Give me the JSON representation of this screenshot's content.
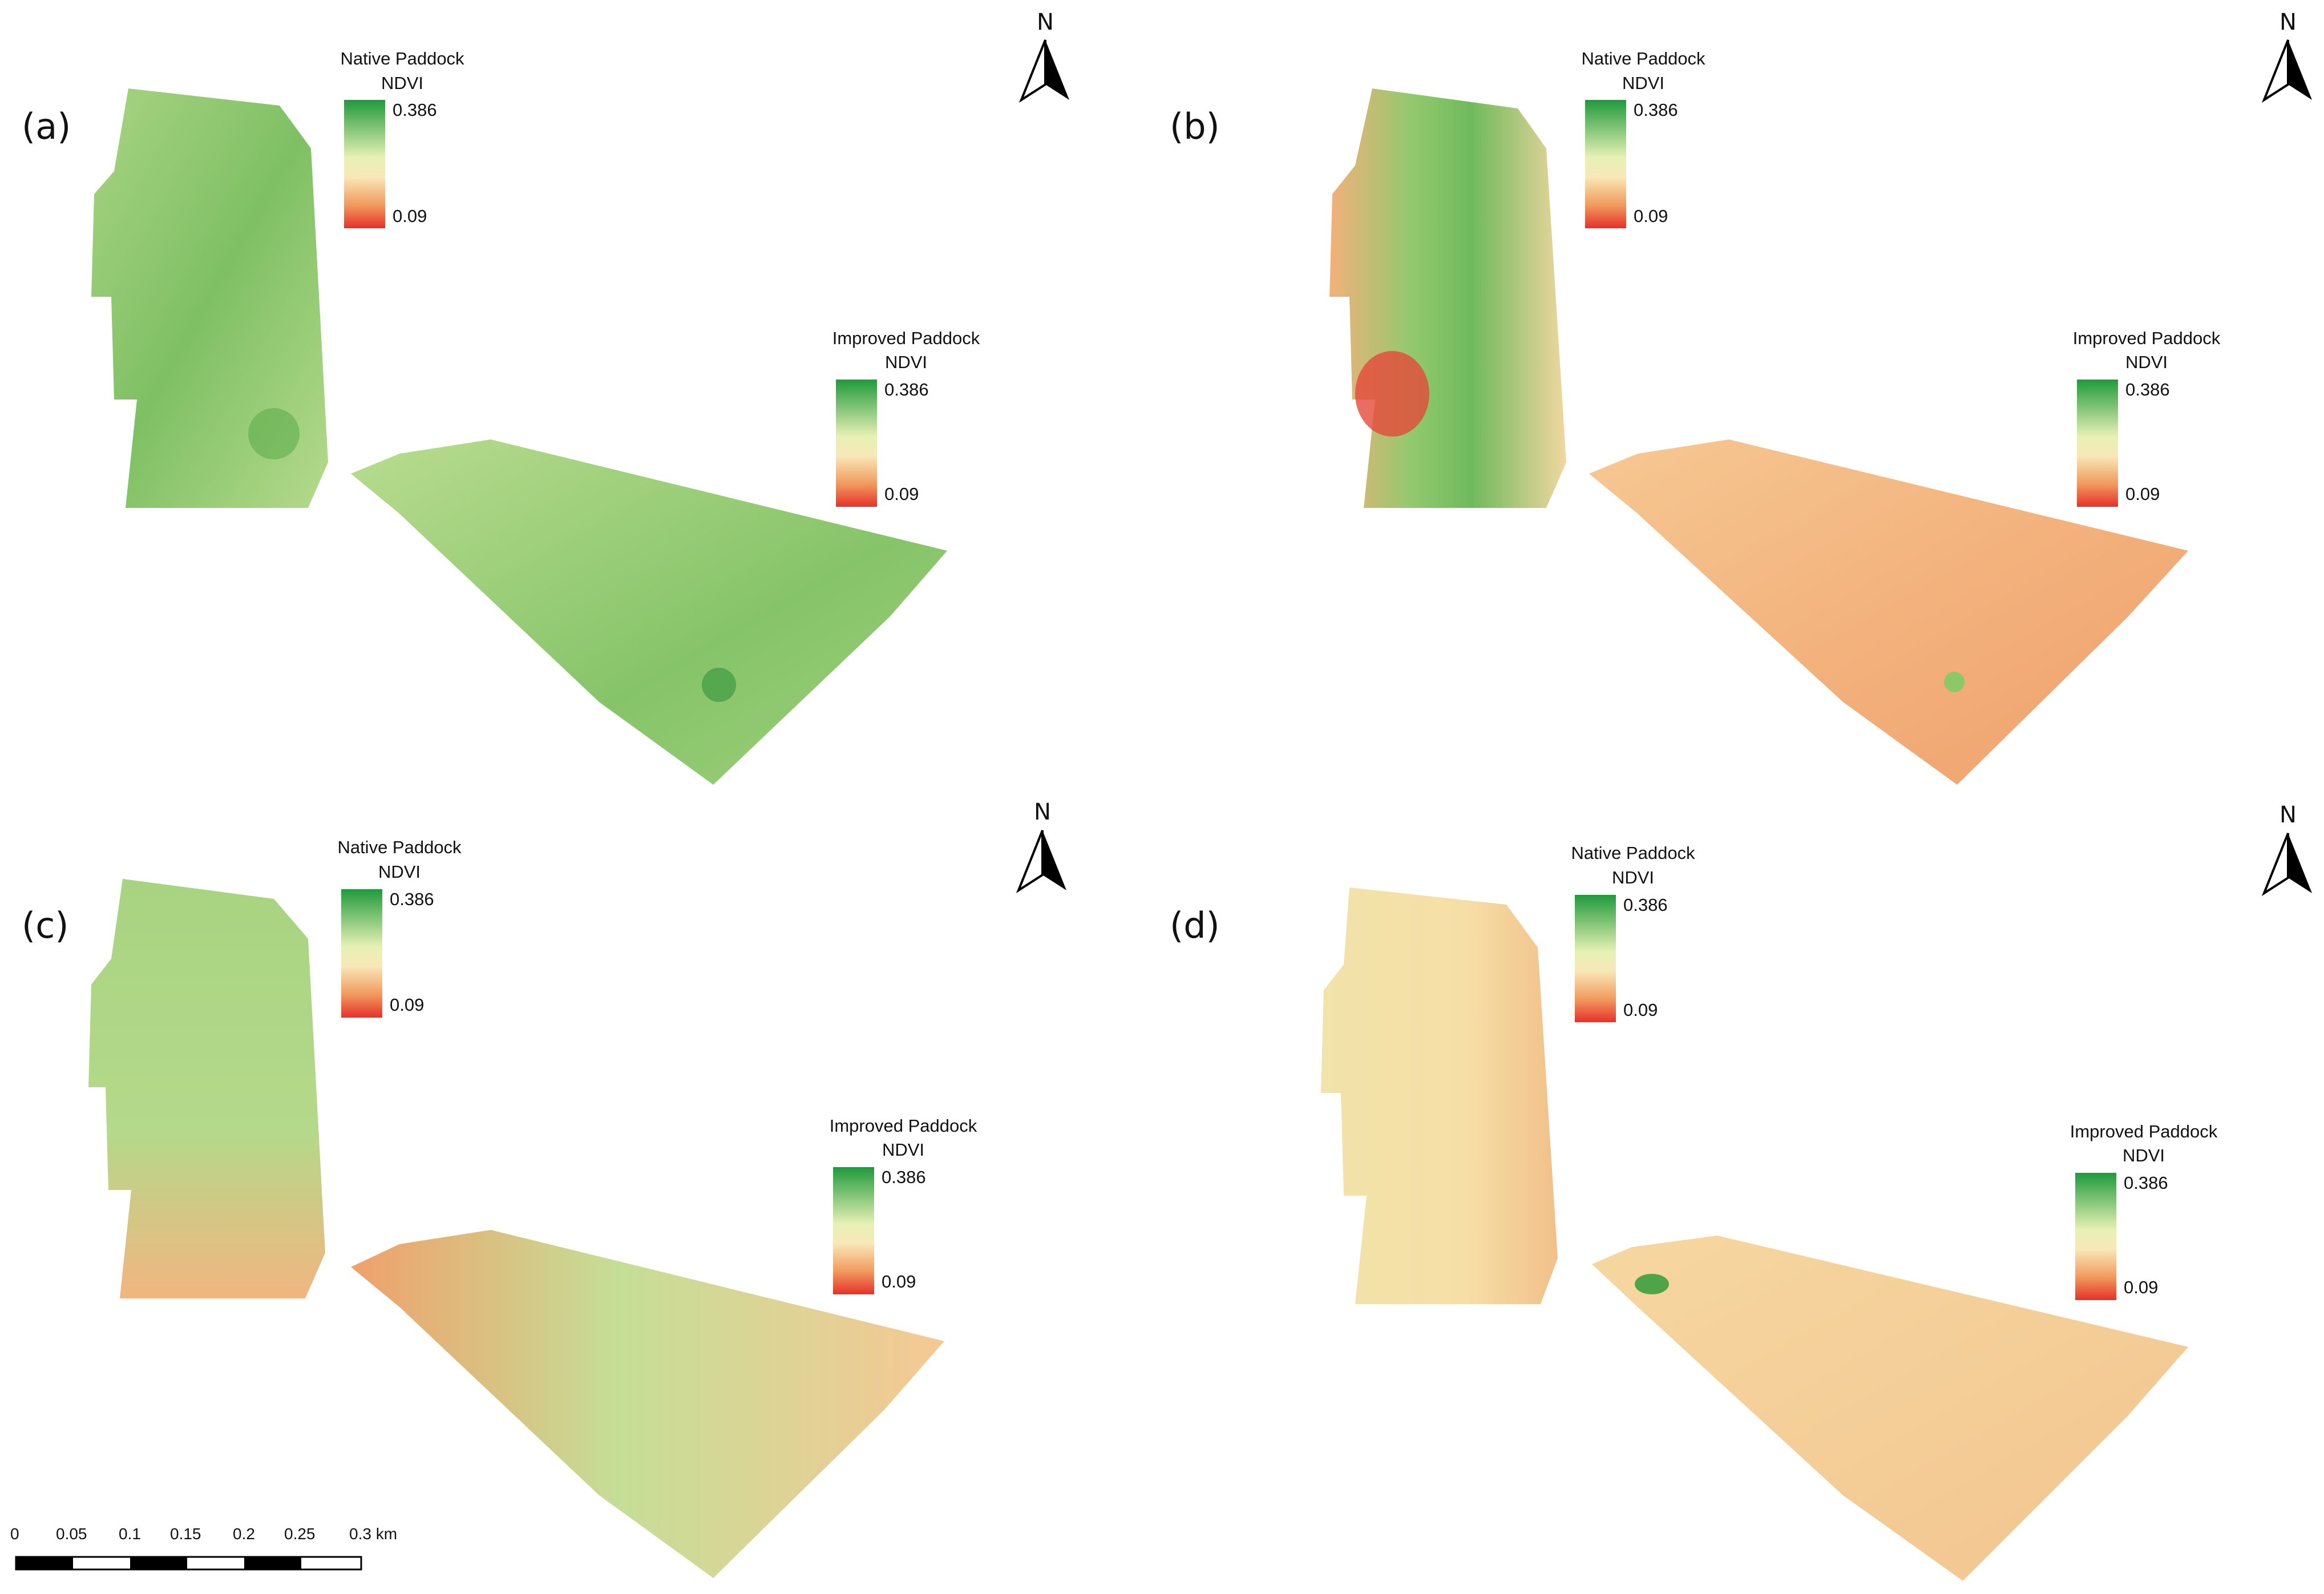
{
  "panels": [
    {
      "label": "(a)",
      "state": "green"
    },
    {
      "label": "(b)",
      "state": "mixed"
    },
    {
      "label": "(c)",
      "state": "patchy"
    },
    {
      "label": "(d)",
      "state": "dry"
    }
  ],
  "legend": {
    "native_title": "Native Paddock",
    "improved_title": "Improved Paddock",
    "index": "NDVI",
    "max": "0.386",
    "min": "0.09",
    "colors": {
      "high": "#1f9a3c",
      "mid": "#f4f6b6",
      "low": "#e5312a"
    }
  },
  "north_arrow": {
    "label": "N"
  },
  "scale_bar": {
    "ticks": [
      "0",
      "0.05",
      "0.1",
      "0.15",
      "0.2",
      "0.25",
      "0.3 km"
    ]
  }
}
